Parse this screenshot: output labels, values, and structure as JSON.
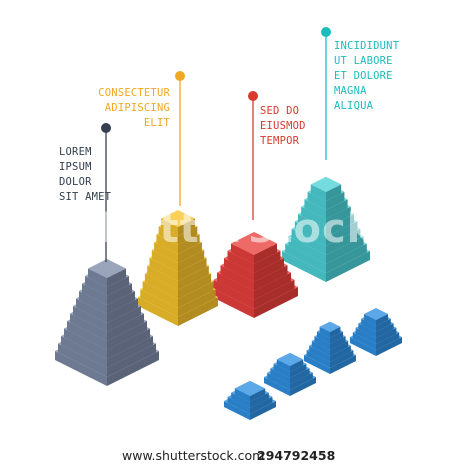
{
  "labels": {
    "lorem": [
      "LOREM",
      "IPSUM",
      "DOLOR",
      "SIT AMET"
    ],
    "consectetur": [
      "CONSECTETUR",
      "ADIPISCING",
      "ELIT"
    ],
    "sed": [
      "SED DO",
      "EIUSMOD",
      "TEMPOR"
    ],
    "incididunt": [
      "INCIDIDUNT",
      "UT LABORE",
      "ET DOLORE",
      "MAGNA",
      "ALIQUA"
    ]
  },
  "colors": {
    "gray": "#7d8aa6",
    "yellow": "#f7c32c",
    "red": "#e8403c",
    "teal": "#4dd1d6",
    "blue": "#2f8fe0",
    "label_gray": "#34404f",
    "label_yellow": "#f0a823",
    "label_red": "#d83a2c",
    "label_teal": "#1dbcbc"
  },
  "footer": {
    "site": "www.shutterstock.com",
    "id": "294792458"
  },
  "watermark": "shutterstock"
}
